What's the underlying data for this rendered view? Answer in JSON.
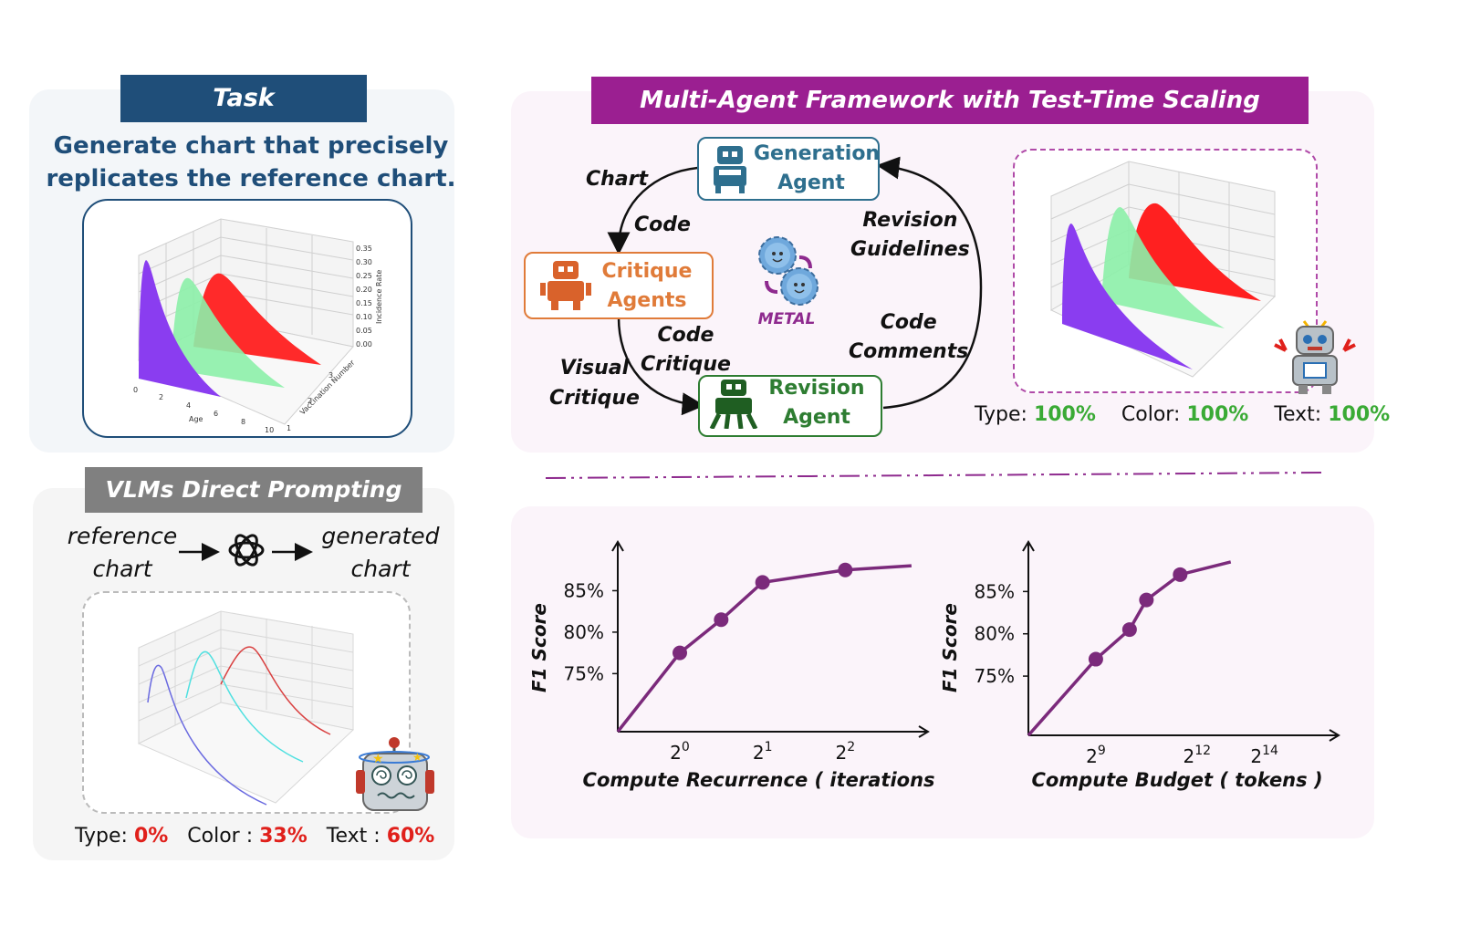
{
  "task": {
    "header": "Task",
    "line1": "Generate chart that precisely",
    "line2": "replicates the reference chart.",
    "axis_y_ticks": [
      "0.35",
      "0.30",
      "0.25",
      "0.20",
      "0.15",
      "0.10",
      "0.05",
      "0.00"
    ],
    "axis_y_label": "Incidence Rate",
    "axis_x_ticks": [
      "0",
      "2",
      "4",
      "6",
      "8",
      "10"
    ],
    "axis_x_label": "Age",
    "axis_z_ticks": [
      "1",
      "2",
      "3"
    ],
    "axis_z_label": "Vaccination Number"
  },
  "vlm": {
    "header": "VLMs Direct Prompting",
    "input_line1": "reference",
    "input_line2": "chart",
    "output_line1": "generated",
    "output_line2": "chart",
    "metrics": {
      "type_label": "Type: ",
      "type_value": "0%",
      "color_label": "Color : ",
      "color_value": "33%",
      "text_label": "Text : ",
      "text_value": "60%"
    }
  },
  "framework": {
    "header": "Multi-Agent Framework with Test-Time Scaling",
    "generation_agent": [
      "Generation",
      "Agent"
    ],
    "critique_agents": [
      "Critique",
      "Agents"
    ],
    "revision_agent": [
      "Revision",
      "Agent"
    ],
    "center_label": "METAL",
    "edge_chart": "Chart",
    "edge_code": "Code",
    "edge_code_critique": [
      "Code",
      "Critique"
    ],
    "edge_visual_critique": [
      "Visual",
      "Critique"
    ],
    "edge_revision_guidelines": [
      "Revision",
      "Guidelines"
    ],
    "edge_code_comments": [
      "Code",
      "Comments"
    ],
    "metrics": {
      "type_label": "Type: ",
      "type_value": "100%",
      "color_label": "Color: ",
      "color_value": "100%",
      "text_label": "Text: ",
      "text_value": "100%"
    }
  },
  "colors": {
    "task_header": "#1f4e79",
    "framework_header": "#9b1f91",
    "vlm_header": "#808080",
    "generation": "#2e6f8e",
    "critique": "#e07b39",
    "revision": "#2e7d32",
    "metal": "#8e2a8e",
    "good": "#3aaa35",
    "bad": "#e0201b",
    "curve": "#7b2a7b"
  },
  "chart_data": [
    {
      "type": "line",
      "title": "",
      "xlabel": "Compute Recurrence ( iterations )",
      "ylabel": "F1 Score",
      "x_tick_labels": [
        {
          "base": "2",
          "exp": "0"
        },
        {
          "base": "2",
          "exp": "1"
        },
        {
          "base": "2",
          "exp": "2"
        }
      ],
      "y_tick_labels": [
        "75%",
        "80%",
        "85%"
      ],
      "x_tick_positions": [
        0,
        1,
        2
      ],
      "ylim": [
        68,
        90
      ],
      "xlim": [
        -0.75,
        3.0
      ],
      "series": [
        {
          "name": "METAL",
          "x": [
            -0.75,
            0,
            0.5,
            1,
            2,
            2.8
          ],
          "y": [
            68,
            77.5,
            81.5,
            86,
            87.5,
            88
          ],
          "markers": [
            1,
            1,
            1,
            1,
            1,
            0
          ],
          "endpoint": [
            1,
            0,
            0,
            0,
            0,
            0
          ]
        }
      ]
    },
    {
      "type": "line",
      "title": "",
      "xlabel": "Compute Budget ( tokens )",
      "ylabel": "F1 Score",
      "x_tick_labels": [
        {
          "base": "2",
          "exp": "9"
        },
        {
          "base": "2",
          "exp": "12"
        },
        {
          "base": "2",
          "exp": "14"
        }
      ],
      "y_tick_labels": [
        "75%",
        "80%",
        "85%"
      ],
      "x_tick_positions": [
        9,
        12,
        14
      ],
      "ylim": [
        68,
        90
      ],
      "xlim": [
        7,
        16.2
      ],
      "series": [
        {
          "name": "METAL",
          "x": [
            7,
            9,
            10,
            10.5,
            11.5,
            13
          ],
          "y": [
            68,
            77,
            80.5,
            84,
            87,
            88.5
          ],
          "markers": [
            1,
            1,
            1,
            1,
            1,
            0
          ],
          "endpoint": [
            1,
            0,
            0,
            0,
            0,
            0
          ]
        }
      ]
    }
  ]
}
